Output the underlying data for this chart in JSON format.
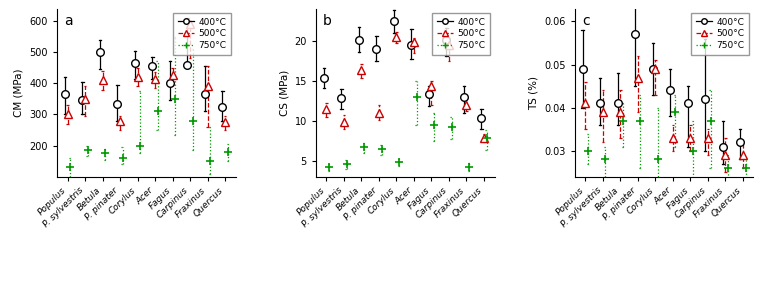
{
  "species": [
    "Populus",
    "P. sylvestris",
    "Betula",
    "P. pinater",
    "Corylus",
    "Acer",
    "Fagus",
    "Carpinus",
    "Fraxinus",
    "Quercus"
  ],
  "panel_a": {
    "ylabel": "CM (MPa)",
    "ylim": [
      100,
      640
    ],
    "yticks": [
      200,
      300,
      400,
      500,
      600
    ],
    "s400": {
      "mean": [
        365,
        345,
        500,
        335,
        465,
        455,
        400,
        460,
        365,
        325
      ],
      "err_lo": [
        65,
        45,
        55,
        55,
        50,
        40,
        55,
        5,
        55,
        45
      ],
      "err_hi": [
        55,
        60,
        40,
        60,
        40,
        30,
        70,
        150,
        90,
        50
      ]
    },
    "s500": {
      "mean": [
        300,
        350,
        410,
        280,
        420,
        415,
        425,
        590,
        390,
        275
      ],
      "err_lo": [
        30,
        55,
        30,
        30,
        30,
        30,
        30,
        110,
        130,
        25
      ],
      "err_hi": [
        30,
        40,
        30,
        15,
        30,
        20,
        25,
        0,
        65,
        20
      ]
    },
    "s750": {
      "mean": [
        130,
        185,
        175,
        160,
        200,
        310,
        350,
        280,
        150,
        180
      ],
      "err_lo": [
        30,
        20,
        20,
        20,
        25,
        60,
        115,
        95,
        40,
        30
      ],
      "err_hi": [
        30,
        15,
        15,
        35,
        175,
        160,
        200,
        230,
        110,
        25
      ]
    }
  },
  "panel_b": {
    "ylabel": "CS (MPa)",
    "ylim": [
      3,
      24
    ],
    "yticks": [
      5,
      10,
      15,
      20
    ],
    "s400": {
      "mean": [
        15.3,
        12.8,
        20.1,
        18.9,
        22.5,
        19.5,
        13.3,
        20.1,
        13.0,
        10.3
      ],
      "err_lo": [
        1.2,
        1.3,
        1.5,
        1.4,
        1.5,
        1.8,
        1.5,
        2.0,
        2.0,
        1.3
      ],
      "err_hi": [
        1.3,
        1.1,
        1.6,
        1.7,
        1.3,
        2.0,
        1.0,
        1.5,
        1.3,
        1.2
      ]
    },
    "s500": {
      "mean": [
        11.4,
        9.8,
        16.3,
        11.0,
        20.5,
        19.8,
        14.3,
        19.5,
        12.0,
        7.8
      ],
      "err_lo": [
        0.9,
        0.8,
        1.0,
        0.9,
        0.8,
        1.3,
        2.3,
        2.0,
        0.8,
        0.5
      ],
      "err_hi": [
        0.8,
        0.9,
        0.8,
        0.9,
        0.6,
        0.5,
        0.7,
        0.8,
        0.8,
        0.5
      ]
    },
    "s750": {
      "mean": [
        4.2,
        4.6,
        6.7,
        6.4,
        4.8,
        13.0,
        9.4,
        9.2,
        4.2,
        7.8
      ],
      "err_lo": [
        0.5,
        0.6,
        0.7,
        0.7,
        0.5,
        3.5,
        2.0,
        1.5,
        0.5,
        1.5
      ],
      "err_hi": [
        0.4,
        0.5,
        0.5,
        0.5,
        0.4,
        2.0,
        1.5,
        1.3,
        0.5,
        1.0
      ]
    }
  },
  "panel_c": {
    "ylabel": "TS (%)",
    "ylim": [
      0.024,
      0.063
    ],
    "yticks": [
      0.03,
      0.04,
      0.05,
      0.06
    ],
    "s400": {
      "mean": [
        0.049,
        0.041,
        0.041,
        0.057,
        0.049,
        0.044,
        0.041,
        0.042,
        0.031,
        0.032
      ],
      "err_lo": [
        0.009,
        0.005,
        0.005,
        0.012,
        0.006,
        0.006,
        0.01,
        0.012,
        0.004,
        0.004
      ],
      "err_hi": [
        0.009,
        0.006,
        0.007,
        0.012,
        0.006,
        0.005,
        0.004,
        0.014,
        0.006,
        0.003
      ]
    },
    "s500": {
      "mean": [
        0.041,
        0.039,
        0.039,
        0.047,
        0.049,
        0.033,
        0.033,
        0.033,
        0.029,
        0.029
      ],
      "err_lo": [
        0.006,
        0.007,
        0.006,
        0.008,
        0.006,
        0.003,
        0.003,
        0.004,
        0.004,
        0.003
      ],
      "err_hi": [
        0.005,
        0.005,
        0.005,
        0.005,
        0.002,
        0.003,
        0.003,
        0.002,
        0.004,
        0.003
      ]
    },
    "s750": {
      "mean": [
        0.03,
        0.028,
        0.037,
        0.037,
        0.028,
        0.039,
        0.03,
        0.037,
        0.026,
        0.026
      ],
      "err_lo": [
        0.003,
        0.004,
        0.006,
        0.011,
        0.007,
        0.008,
        0.007,
        0.011,
        0.004,
        0.003
      ],
      "err_hi": [
        0.004,
        0.003,
        0.004,
        0.006,
        0.012,
        0.004,
        0.007,
        0.007,
        0.003,
        0.003
      ]
    }
  },
  "colors": {
    "400": "#000000",
    "500": "#cc0000",
    "750": "#009900"
  },
  "legend_labels": [
    "400°C",
    "500°C",
    "750°C"
  ]
}
